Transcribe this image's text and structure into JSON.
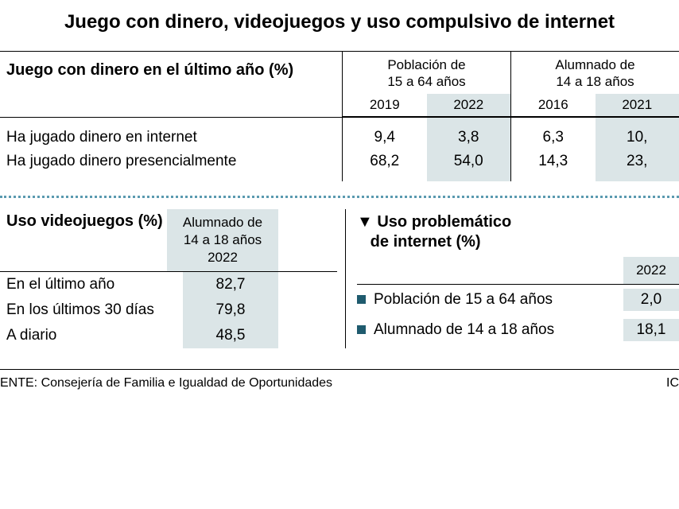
{
  "title": "Juego con dinero, videojuegos y uso compulsivo de internet",
  "table1": {
    "title": "Juego con dinero en el último año (%)",
    "groups": [
      {
        "head1": "Población de",
        "head2": "15 a 64 años",
        "years": [
          "2019",
          "2022"
        ]
      },
      {
        "head1": "Alumnado de",
        "head2": "14 a 18 años",
        "years": [
          "2016",
          "2021"
        ]
      }
    ],
    "rows": [
      {
        "label": "Ha jugado dinero en internet",
        "vals": [
          "9,4",
          "3,8",
          "6,3",
          "10,"
        ]
      },
      {
        "label": "Ha jugado dinero presencialmente",
        "vals": [
          "68,2",
          "54,0",
          "14,3",
          "23,"
        ]
      }
    ]
  },
  "videogames": {
    "title": "Uso videojuegos (%)",
    "colhead1": "Alumnado de",
    "colhead2": "14 a 18 años",
    "colhead3": "2022",
    "rows": [
      {
        "label": "En el último año",
        "val": "82,7"
      },
      {
        "label": "En los últimos 30 días",
        "val": "79,8"
      },
      {
        "label": "A diario",
        "val": "48,5"
      }
    ]
  },
  "internet": {
    "title1": "Uso problemático",
    "title2": "de internet (%)",
    "year": "2022",
    "rows": [
      {
        "label": "Población de 15 a 64 años",
        "val": "2,0"
      },
      {
        "label": "Alumnado de 14 a 18 años",
        "val": "18,1"
      }
    ]
  },
  "footer": {
    "source_prefix": "ENTE:",
    "source": "Consejería de Familia e Igualdad de Oportunidades",
    "right": "IC"
  },
  "colors": {
    "highlight_bg": "#dbe5e7",
    "dotted": "#5a9ab0",
    "bullet": "#1f5b6e"
  }
}
